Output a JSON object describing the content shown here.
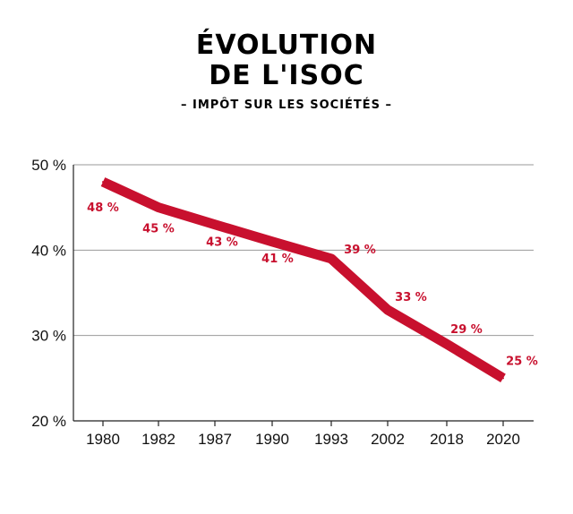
{
  "chart_data": {
    "type": "line",
    "title_lines": [
      "ÉVOLUTION",
      "DE L'ISOC"
    ],
    "subtitle": "– IMPÔT SUR LES SOCIÉTÉS –",
    "categories": [
      "1980",
      "1982",
      "1987",
      "1990",
      "1993",
      "2002",
      "2018",
      "2020"
    ],
    "values": [
      48,
      45,
      43,
      41,
      39,
      33,
      29,
      25
    ],
    "data_labels": [
      "48 %",
      "45 %",
      "43 %",
      "41 %",
      "39 %",
      "33 %",
      "29 %",
      "25 %"
    ],
    "y_ticks": [
      "20 %",
      "30 %",
      "40 %",
      "50 %"
    ],
    "ylim": [
      20,
      50
    ],
    "grid": true,
    "line_color": "#c8102e"
  }
}
